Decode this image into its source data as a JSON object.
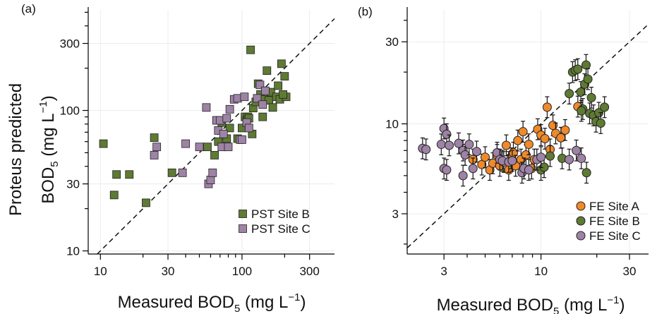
{
  "chart_data": [
    {
      "panel_label": "(a)",
      "type": "scatter",
      "x_scale": "log",
      "y_scale": "log",
      "xlim": [
        8.2,
        450
      ],
      "ylim": [
        9.5,
        520
      ],
      "x_ticks": [
        10,
        30,
        100,
        300
      ],
      "x_tick_labels": [
        "10",
        "30",
        "100",
        "300"
      ],
      "y_ticks": [
        10,
        30,
        100,
        300
      ],
      "y_tick_labels": [
        "10",
        "30",
        "100",
        "300"
      ],
      "grid": true,
      "one_to_one_line": true,
      "legend_position": "bottom-right",
      "series": [
        {
          "name": "PST Site B",
          "marker": "square",
          "color": "#5e7a33",
          "points": [
            [
              10.5,
              58
            ],
            [
              12.5,
              25
            ],
            [
              13,
              35
            ],
            [
              16,
              35
            ],
            [
              21,
              22
            ],
            [
              24,
              64
            ],
            [
              32,
              36
            ],
            [
              57,
              55
            ],
            [
              64,
              48
            ],
            [
              68,
              60
            ],
            [
              72,
              82
            ],
            [
              78,
              63
            ],
            [
              82,
              75
            ],
            [
              93,
              63
            ],
            [
              100,
              75
            ],
            [
              105,
              90
            ],
            [
              108,
              85
            ],
            [
              110,
              90
            ],
            [
              112,
              88
            ],
            [
              115,
              270
            ],
            [
              118,
              68
            ],
            [
              120,
              104
            ],
            [
              125,
              115
            ],
            [
              130,
              155
            ],
            [
              135,
              130
            ],
            [
              140,
              90
            ],
            [
              145,
              120
            ],
            [
              150,
              192
            ],
            [
              155,
              118
            ],
            [
              160,
              135
            ],
            [
              165,
              105
            ],
            [
              175,
              125
            ],
            [
              180,
              150
            ],
            [
              185,
              120
            ],
            [
              190,
              215
            ],
            [
              200,
              175
            ],
            [
              205,
              125
            ],
            [
              195,
              130
            ]
          ]
        },
        {
          "name": "PST Site C",
          "marker": "square",
          "color": "#9e83a6",
          "points": [
            [
              24,
              48
            ],
            [
              25,
              55
            ],
            [
              38,
              36
            ],
            [
              40,
              58
            ],
            [
              50,
              55
            ],
            [
              56,
              105
            ],
            [
              58,
              30
            ],
            [
              60,
              32
            ],
            [
              62,
              36
            ],
            [
              66,
              85
            ],
            [
              68,
              72
            ],
            [
              70,
              85
            ],
            [
              72,
              55
            ],
            [
              74,
              68
            ],
            [
              78,
              88
            ],
            [
              80,
              55
            ],
            [
              82,
              102
            ],
            [
              88,
              120
            ],
            [
              93,
              122
            ],
            [
              97,
              62
            ],
            [
              100,
              62
            ],
            [
              104,
              125
            ],
            [
              108,
              82
            ],
            [
              112,
              75
            ],
            [
              128,
              122
            ],
            [
              134,
              152
            ],
            [
              140,
              110
            ],
            [
              146,
              138
            ]
          ]
        }
      ]
    },
    {
      "panel_label": "(b)",
      "type": "scatter",
      "x_scale": "log",
      "y_scale": "log",
      "xlim": [
        1.9,
        38
      ],
      "ylim": [
        1.75,
        46
      ],
      "x_ticks": [
        3,
        10,
        30
      ],
      "x_tick_labels": [
        "3",
        "10",
        "30"
      ],
      "y_ticks": [
        3,
        10,
        30
      ],
      "y_tick_labels": [
        "3",
        "10",
        "30"
      ],
      "grid": true,
      "one_to_one_line": true,
      "error_bars": true,
      "legend_position": "bottom-right",
      "series": [
        {
          "name": "FE Site A",
          "marker": "circle",
          "color": "#f0892a",
          "points": [
            [
              4.3,
              6.2
            ],
            [
              4.8,
              5.8
            ],
            [
              5.0,
              6.4
            ],
            [
              5.3,
              5.4
            ],
            [
              5.5,
              5.9
            ],
            [
              5.8,
              6.6
            ],
            [
              6.0,
              5.7
            ],
            [
              6.3,
              6.0
            ],
            [
              6.5,
              7.5
            ],
            [
              6.7,
              5.4
            ],
            [
              6.9,
              6.3
            ],
            [
              7.1,
              6.8
            ],
            [
              7.3,
              5.7
            ],
            [
              7.5,
              8.0
            ],
            [
              7.8,
              6.2
            ],
            [
              8.0,
              9.0
            ],
            [
              8.3,
              6.6
            ],
            [
              8.6,
              7.6
            ],
            [
              8.9,
              5.5
            ],
            [
              9.2,
              6.2
            ],
            [
              9.6,
              9.3
            ],
            [
              10.0,
              8.6
            ],
            [
              10.5,
              8.2
            ],
            [
              10.8,
              12.5
            ],
            [
              11.2,
              7.1
            ],
            [
              11.6,
              9.8
            ],
            [
              12.0,
              8.8
            ],
            [
              12.8,
              8.3
            ],
            [
              13.5,
              9.2
            ],
            [
              15.8,
              12.6
            ]
          ]
        },
        {
          "name": "FE Site B",
          "marker": "circle",
          "color": "#5e7a33",
          "points": [
            [
              10.0,
              5.4
            ],
            [
              10.4,
              5.6
            ],
            [
              11.2,
              6.5
            ],
            [
              13.0,
              6.3
            ],
            [
              14.2,
              15.0
            ],
            [
              14.8,
              20.0
            ],
            [
              15.3,
              20.5
            ],
            [
              15.8,
              20.8
            ],
            [
              16.4,
              15.3
            ],
            [
              16.8,
              12.2
            ],
            [
              17.2,
              17.0
            ],
            [
              17.5,
              22.0
            ],
            [
              17.9,
              18.2
            ],
            [
              18.3,
              11.5
            ],
            [
              18.7,
              14.2
            ],
            [
              19.2,
              11.2
            ],
            [
              19.8,
              10.3
            ],
            [
              20.5,
              11.6
            ],
            [
              21.0,
              10.1
            ],
            [
              22.0,
              12.5
            ],
            [
              17.6,
              5.2
            ],
            [
              16.5,
              11.9
            ]
          ]
        },
        {
          "name": "FE Site C",
          "marker": "circle",
          "color": "#9e83a6",
          "points": [
            [
              2.3,
              7.2
            ],
            [
              2.4,
              7.1
            ],
            [
              2.9,
              7.6
            ],
            [
              3.0,
              5.5
            ],
            [
              3.0,
              9.4
            ],
            [
              3.1,
              8.7
            ],
            [
              3.1,
              5.4
            ],
            [
              3.2,
              7.5
            ],
            [
              3.6,
              7.7
            ],
            [
              3.8,
              5.0
            ],
            [
              3.8,
              7.0
            ],
            [
              3.9,
              6.6
            ],
            [
              4.1,
              7.6
            ],
            [
              4.3,
              5.5
            ],
            [
              4.5,
              6.9
            ],
            [
              5.8,
              6.8
            ],
            [
              6.0,
              6.2
            ],
            [
              6.2,
              6.1
            ],
            [
              6.7,
              6.0
            ],
            [
              7.0,
              6.1
            ],
            [
              7.9,
              5.2
            ],
            [
              8.1,
              5.5
            ],
            [
              8.6,
              5.4
            ],
            [
              9.5,
              6.2
            ],
            [
              10.0,
              6.4
            ],
            [
              14.2,
              6.2
            ],
            [
              15.5,
              7.0
            ],
            [
              16.5,
              6.3
            ]
          ]
        }
      ]
    }
  ],
  "labels": {
    "ylabel_line1": "Proteus predicted",
    "ylabel_line2_main": "BOD",
    "ylabel_line2_sub": "5",
    "ylabel_line2_unit": " (mg L",
    "ylabel_line2_sup": "−1",
    "ylabel_line2_close": ")",
    "xlabel_main": "Measured BOD",
    "xlabel_sub": "5",
    "xlabel_unit": " (mg L",
    "xlabel_sup": "−1",
    "xlabel_close": ")"
  }
}
